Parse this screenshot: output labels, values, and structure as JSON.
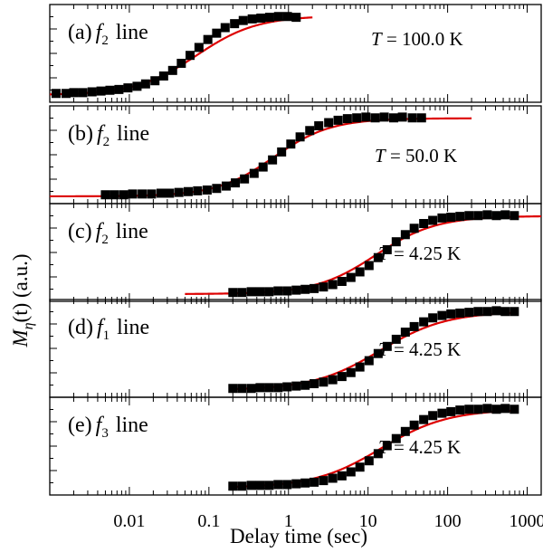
{
  "figure": {
    "ylabel_main": "M",
    "ylabel_sub": "η",
    "ylabel_rest": "(t) (a.u.)",
    "xlabel": "Delay time (sec)",
    "x_ticks": [
      "0.01",
      "0.1",
      "1",
      "10",
      "100",
      "1000"
    ]
  },
  "colors": {
    "data": "#000000",
    "fit": "#dd0000",
    "axes": "#000000"
  },
  "chart_data": [
    {
      "type": "scatter",
      "panel_label": "(a)",
      "line_symbol": "f",
      "line_index": "2",
      "line_word": "line",
      "temperature_prefix": "T",
      "temperature_text": " = 100.0 K",
      "x_scale": "log",
      "xlim": [
        0.001,
        1500
      ],
      "ylim": [
        0,
        1.05
      ],
      "series": [
        {
          "kind": "data",
          "x": [
            0.0012,
            0.0016,
            0.002,
            0.0026,
            0.0034,
            0.0044,
            0.0057,
            0.0074,
            0.0096,
            0.0125,
            0.016,
            0.021,
            0.027,
            0.035,
            0.045,
            0.058,
            0.075,
            0.097,
            0.125,
            0.16,
            0.21,
            0.27,
            0.35,
            0.45,
            0.58,
            0.75,
            0.97,
            1.25
          ],
          "y": [
            0.02,
            0.02,
            0.03,
            0.03,
            0.04,
            0.05,
            0.06,
            0.07,
            0.09,
            0.11,
            0.14,
            0.18,
            0.24,
            0.31,
            0.4,
            0.5,
            0.6,
            0.7,
            0.78,
            0.85,
            0.9,
            0.94,
            0.96,
            0.97,
            0.98,
            0.99,
            0.99,
            0.98
          ]
        },
        {
          "kind": "fit",
          "x0": 0.001,
          "x1": 2.0,
          "x_mid": 0.07,
          "width": 0.38,
          "y_low": 0.0,
          "y_high": 1.0
        }
      ]
    },
    {
      "type": "scatter",
      "panel_label": "(b)",
      "line_symbol": "f",
      "line_index": "2",
      "line_word": "line",
      "temperature_prefix": "T",
      "temperature_text": " = 50.0 K",
      "x_scale": "log",
      "xlim": [
        0.001,
        1500
      ],
      "ylim": [
        0,
        1.05
      ],
      "series": [
        {
          "kind": "data",
          "x": [
            0.005,
            0.0065,
            0.0085,
            0.011,
            0.0145,
            0.019,
            0.025,
            0.032,
            0.042,
            0.055,
            0.072,
            0.095,
            0.125,
            0.165,
            0.215,
            0.28,
            0.37,
            0.48,
            0.63,
            0.82,
            1.07,
            1.4,
            1.85,
            2.4,
            3.2,
            4.2,
            5.5,
            7.2,
            9.4,
            12.3,
            16,
            21,
            27,
            36,
            47
          ],
          "y": [
            0.02,
            0.02,
            0.02,
            0.03,
            0.03,
            0.03,
            0.04,
            0.04,
            0.05,
            0.06,
            0.07,
            0.08,
            0.1,
            0.13,
            0.17,
            0.22,
            0.29,
            0.37,
            0.46,
            0.56,
            0.66,
            0.75,
            0.83,
            0.89,
            0.93,
            0.96,
            0.98,
            0.99,
            1.0,
            0.99,
            1.0,
            0.99,
            1.0,
            0.99,
            0.99
          ]
        },
        {
          "kind": "fit",
          "x0": 0.001,
          "x1": 200,
          "x_mid": 0.65,
          "width": 0.36,
          "y_low": 0.0,
          "y_high": 0.985
        }
      ]
    },
    {
      "type": "scatter",
      "panel_label": "(c)",
      "line_symbol": "f",
      "line_index": "2",
      "line_word": "line",
      "temperature_prefix": "T",
      "temperature_text": " = 4.25 K",
      "x_scale": "log",
      "xlim": [
        0.001,
        1500
      ],
      "ylim": [
        0,
        1.05
      ],
      "series": [
        {
          "kind": "data",
          "x": [
            0.2,
            0.26,
            0.34,
            0.44,
            0.57,
            0.74,
            0.96,
            1.25,
            1.62,
            2.1,
            2.75,
            3.6,
            4.7,
            6.1,
            7.9,
            10.3,
            13.4,
            17.4,
            22.6,
            29.4,
            38,
            50,
            65,
            85,
            110,
            143,
            186,
            242,
            315,
            410,
            530,
            690
          ],
          "y": [
            0.02,
            0.02,
            0.03,
            0.03,
            0.03,
            0.04,
            0.04,
            0.05,
            0.06,
            0.07,
            0.09,
            0.12,
            0.16,
            0.21,
            0.28,
            0.36,
            0.46,
            0.56,
            0.66,
            0.75,
            0.83,
            0.89,
            0.93,
            0.96,
            0.97,
            0.98,
            0.99,
            0.99,
            1.0,
            0.99,
            1.0,
            0.99
          ]
        },
        {
          "kind": "fit",
          "x0": 0.05,
          "x1": 1500,
          "x_mid": 12.5,
          "width": 0.38,
          "y_low": 0.0,
          "y_high": 0.985
        }
      ]
    },
    {
      "type": "scatter",
      "panel_label": "(d)",
      "line_symbol": "f",
      "line_index": "1",
      "line_word": "line",
      "temperature_prefix": "T",
      "temperature_text": " = 4.25 K",
      "x_scale": "log",
      "xlim": [
        0.001,
        1500
      ],
      "ylim": [
        0,
        1.05
      ],
      "series": [
        {
          "kind": "data",
          "x": [
            0.2,
            0.26,
            0.34,
            0.44,
            0.57,
            0.74,
            0.96,
            1.25,
            1.62,
            2.1,
            2.75,
            3.6,
            4.7,
            6.1,
            7.9,
            10.3,
            13.4,
            17.4,
            22.6,
            29.4,
            38,
            50,
            65,
            85,
            110,
            143,
            186,
            242,
            315,
            410,
            530,
            690
          ],
          "y": [
            0.02,
            0.02,
            0.02,
            0.03,
            0.03,
            0.03,
            0.04,
            0.05,
            0.06,
            0.08,
            0.1,
            0.13,
            0.17,
            0.22,
            0.29,
            0.37,
            0.46,
            0.55,
            0.64,
            0.73,
            0.8,
            0.86,
            0.91,
            0.94,
            0.96,
            0.97,
            0.98,
            0.99,
            0.99,
            1.0,
            0.99,
            0.99
          ]
        },
        {
          "kind": "fit",
          "x0": 0.2,
          "x1": 700,
          "x_mid": 14,
          "width": 0.42,
          "y_low": 0.0,
          "y_high": 0.99
        }
      ]
    },
    {
      "type": "scatter",
      "panel_label": "(e)",
      "line_symbol": "f",
      "line_index": "3",
      "line_word": "line",
      "temperature_prefix": "T",
      "temperature_text": " = 4.25 K",
      "x_scale": "log",
      "xlim": [
        0.001,
        1500
      ],
      "ylim": [
        0,
        1.05
      ],
      "series": [
        {
          "kind": "data",
          "x": [
            0.2,
            0.26,
            0.34,
            0.44,
            0.57,
            0.74,
            0.96,
            1.25,
            1.62,
            2.1,
            2.75,
            3.6,
            4.7,
            6.1,
            7.9,
            10.3,
            13.4,
            17.4,
            22.6,
            29.4,
            38,
            50,
            65,
            85,
            110,
            143,
            186,
            242,
            315,
            410,
            530,
            690
          ],
          "y": [
            0.02,
            0.02,
            0.03,
            0.03,
            0.03,
            0.04,
            0.04,
            0.05,
            0.06,
            0.07,
            0.09,
            0.12,
            0.15,
            0.2,
            0.26,
            0.34,
            0.43,
            0.53,
            0.62,
            0.71,
            0.79,
            0.86,
            0.91,
            0.94,
            0.96,
            0.98,
            0.99,
            0.99,
            1.0,
            0.99,
            1.0,
            0.99
          ]
        },
        {
          "kind": "fit",
          "x0": 0.2,
          "x1": 700,
          "x_mid": 14.5,
          "width": 0.42,
          "y_low": 0.0,
          "y_high": 0.99
        }
      ]
    }
  ]
}
